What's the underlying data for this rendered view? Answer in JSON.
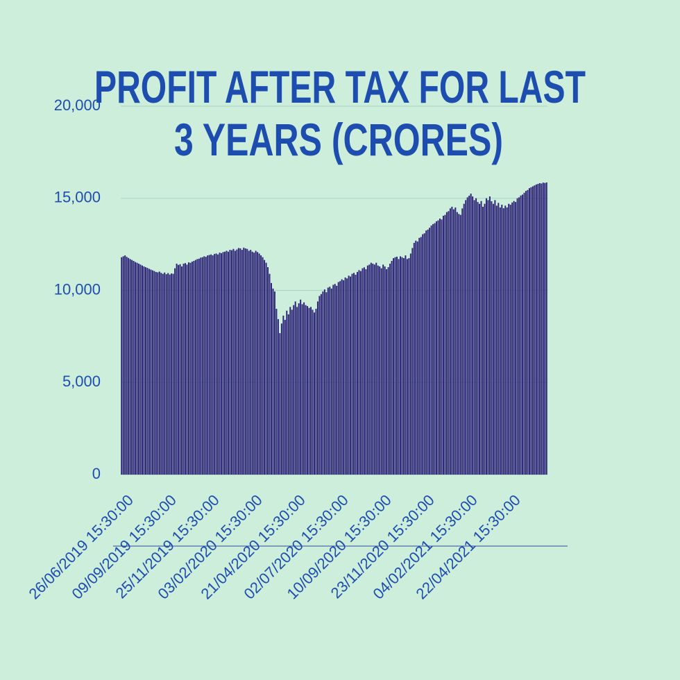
{
  "chart_data": {
    "type": "bar",
    "title": [
      "PROFIT AFTER TAX FOR LAST",
      "3 YEARS (CRORES)"
    ],
    "color": "#2d2478",
    "grid": true,
    "ylim": [
      0,
      20000
    ],
    "yticks": [
      0,
      {
        "value": 5000,
        "label": "5,000"
      },
      {
        "value": 10000,
        "label": "10,000"
      },
      {
        "value": 15000,
        "label": "15,000"
      },
      {
        "value": 20000,
        "label": "20,000"
      }
    ],
    "categories": [
      "26/06/2019 15:30:00",
      null,
      null,
      null,
      null,
      null,
      null,
      null,
      null,
      null,
      null,
      null,
      null,
      null,
      null,
      null,
      null,
      null,
      null,
      null,
      null,
      null,
      null,
      null,
      null,
      "09/09/2019 15:30:00",
      null,
      null,
      null,
      null,
      null,
      null,
      null,
      null,
      null,
      null,
      null,
      null,
      null,
      null,
      null,
      null,
      null,
      null,
      null,
      null,
      null,
      null,
      null,
      null,
      "25/11/2019 15:30:00",
      null,
      null,
      null,
      null,
      null,
      null,
      null,
      null,
      null,
      null,
      null,
      null,
      null,
      null,
      null,
      null,
      null,
      null,
      null,
      null,
      null,
      null,
      null,
      null,
      "03/02/2020 15:30:00",
      null,
      null,
      null,
      null,
      null,
      null,
      null,
      null,
      null,
      null,
      null,
      null,
      null,
      null,
      null,
      null,
      null,
      null,
      null,
      null,
      null,
      null,
      null,
      null,
      "21/04/2020 15:30:00",
      null,
      null,
      null,
      null,
      null,
      null,
      null,
      null,
      null,
      null,
      null,
      null,
      null,
      null,
      null,
      null,
      null,
      null,
      null,
      null,
      null,
      null,
      null,
      null,
      "02/07/2020 15:30:00",
      null,
      null,
      null,
      null,
      null,
      null,
      null,
      null,
      null,
      null,
      null,
      null,
      null,
      null,
      null,
      null,
      null,
      null,
      null,
      null,
      null,
      null,
      null,
      null,
      "10/09/2020 15:30:00",
      null,
      null,
      null,
      null,
      null,
      null,
      null,
      null,
      null,
      null,
      null,
      null,
      null,
      null,
      null,
      null,
      null,
      null,
      null,
      null,
      null,
      null,
      null,
      null,
      "23/11/2020 15:30:00",
      null,
      null,
      null,
      null,
      null,
      null,
      null,
      null,
      null,
      null,
      null,
      null,
      null,
      null,
      null,
      null,
      null,
      null,
      null,
      null,
      null,
      null,
      null,
      null,
      "04/02/2021 15:30:00",
      null,
      null,
      null,
      null,
      null,
      null,
      null,
      null,
      null,
      null,
      null,
      null,
      null,
      null,
      null,
      null,
      null,
      null,
      null,
      null,
      null,
      null,
      null,
      null,
      "22/04/2021 15:30:00",
      null,
      null,
      null,
      null,
      null,
      null,
      null,
      null,
      null,
      null,
      null,
      null,
      null,
      null,
      null,
      null,
      null,
      null,
      null,
      null,
      null,
      null
    ],
    "values": [
      11800,
      11850,
      11900,
      11820,
      11760,
      11700,
      11650,
      11600,
      11540,
      11500,
      11450,
      11400,
      11350,
      11300,
      11260,
      11220,
      11170,
      11130,
      11090,
      11050,
      11000,
      10980,
      11020,
      10950,
      10900,
      10970,
      10880,
      10940,
      10860,
      10920,
      10900,
      11200,
      11450,
      11380,
      11420,
      11300,
      11450,
      11480,
      11400,
      11520,
      11500,
      11560,
      11600,
      11650,
      11700,
      11720,
      11780,
      11800,
      11850,
      11820,
      11900,
      11920,
      11950,
      11900,
      11980,
      12000,
      11950,
      12050,
      12020,
      12080,
      12100,
      12150,
      12100,
      12200,
      12180,
      12250,
      12150,
      12220,
      12300,
      12280,
      12200,
      12320,
      12280,
      12250,
      12150,
      12200,
      12100,
      12050,
      12150,
      12080,
      12000,
      11900,
      11800,
      11650,
      11500,
      11260,
      10900,
      10400,
      10100,
      9940,
      9000,
      8440,
      7680,
      8200,
      8630,
      8400,
      8900,
      8700,
      9100,
      8950,
      9200,
      9400,
      9100,
      9300,
      9500,
      9250,
      9350,
      9200,
      9150,
      9050,
      9100,
      8950,
      8800,
      9000,
      9400,
      9700,
      9800,
      9940,
      10050,
      9900,
      10150,
      10200,
      10100,
      10300,
      10350,
      10250,
      10450,
      10500,
      10600,
      10550,
      10700,
      10650,
      10800,
      10750,
      10900,
      10950,
      10850,
      11000,
      11100,
      11050,
      11200,
      11250,
      11150,
      11350,
      11400,
      11500,
      11450,
      11400,
      11500,
      11350,
      11300,
      11200,
      11400,
      11300,
      11150,
      11260,
      11450,
      11600,
      11750,
      11800,
      11830,
      11700,
      11850,
      11800,
      11750,
      11900,
      11700,
      11750,
      12000,
      12300,
      12580,
      12700,
      12650,
      12850,
      12900,
      13050,
      13100,
      13250,
      13300,
      13400,
      13520,
      13600,
      13650,
      13750,
      13800,
      13900,
      13850,
      14050,
      14100,
      14250,
      14300,
      14450,
      14540,
      14400,
      14500,
      14250,
      14150,
      14100,
      14450,
      14700,
      14900,
      15050,
      15140,
      15250,
      15100,
      14900,
      15000,
      14800,
      14700,
      14850,
      14540,
      14700,
      15000,
      14900,
      15100,
      14840,
      14700,
      14900,
      14600,
      14750,
      14500,
      14650,
      14460,
      14600,
      14500,
      14700,
      14650,
      14770,
      14850,
      14800,
      15000,
      15050,
      15150,
      15200,
      15300,
      15400,
      15450,
      15550,
      15600,
      15650,
      15700,
      15750,
      15780,
      15820,
      15800,
      15850,
      15830,
      15860
    ]
  }
}
